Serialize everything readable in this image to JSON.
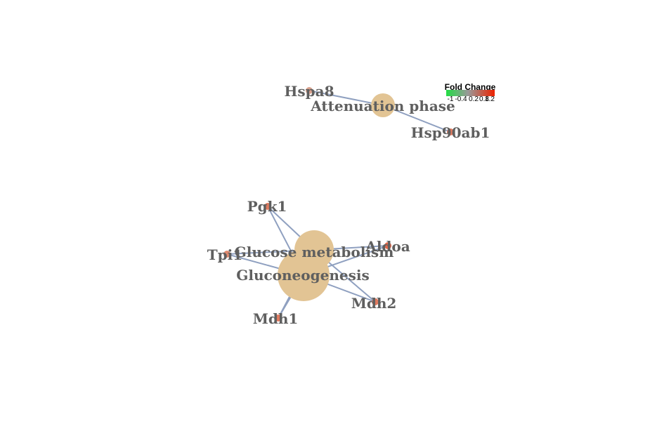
{
  "legend": {
    "title": "Fold Change",
    "ticks": [
      "-1",
      "-0.4",
      "0.2",
      "0.8",
      "1.2"
    ],
    "colors": [
      "#22dd44",
      "#999999",
      "#ee2200"
    ]
  },
  "colors": {
    "term_node": "#e2c494",
    "gene_node": "#e07a5f",
    "edge": "#8fa0c0",
    "label": "#5f5f5f"
  },
  "terms": [
    {
      "id": "attenuation",
      "label": "Attenuation phase"
    },
    {
      "id": "glucose",
      "label": "Glucose metabolism"
    },
    {
      "id": "gluconeo",
      "label": "Gluconeogenesis"
    }
  ],
  "genes": [
    {
      "id": "hspa8",
      "label": "Hspa8"
    },
    {
      "id": "hsp90ab1",
      "label": "Hsp90ab1"
    },
    {
      "id": "pgk1",
      "label": "Pgk1"
    },
    {
      "id": "aldoa",
      "label": "Aldoa"
    },
    {
      "id": "tpi1",
      "label": "Tpi1"
    },
    {
      "id": "mdh2",
      "label": "Mdh2"
    },
    {
      "id": "mdh1",
      "label": "Mdh1"
    }
  ]
}
